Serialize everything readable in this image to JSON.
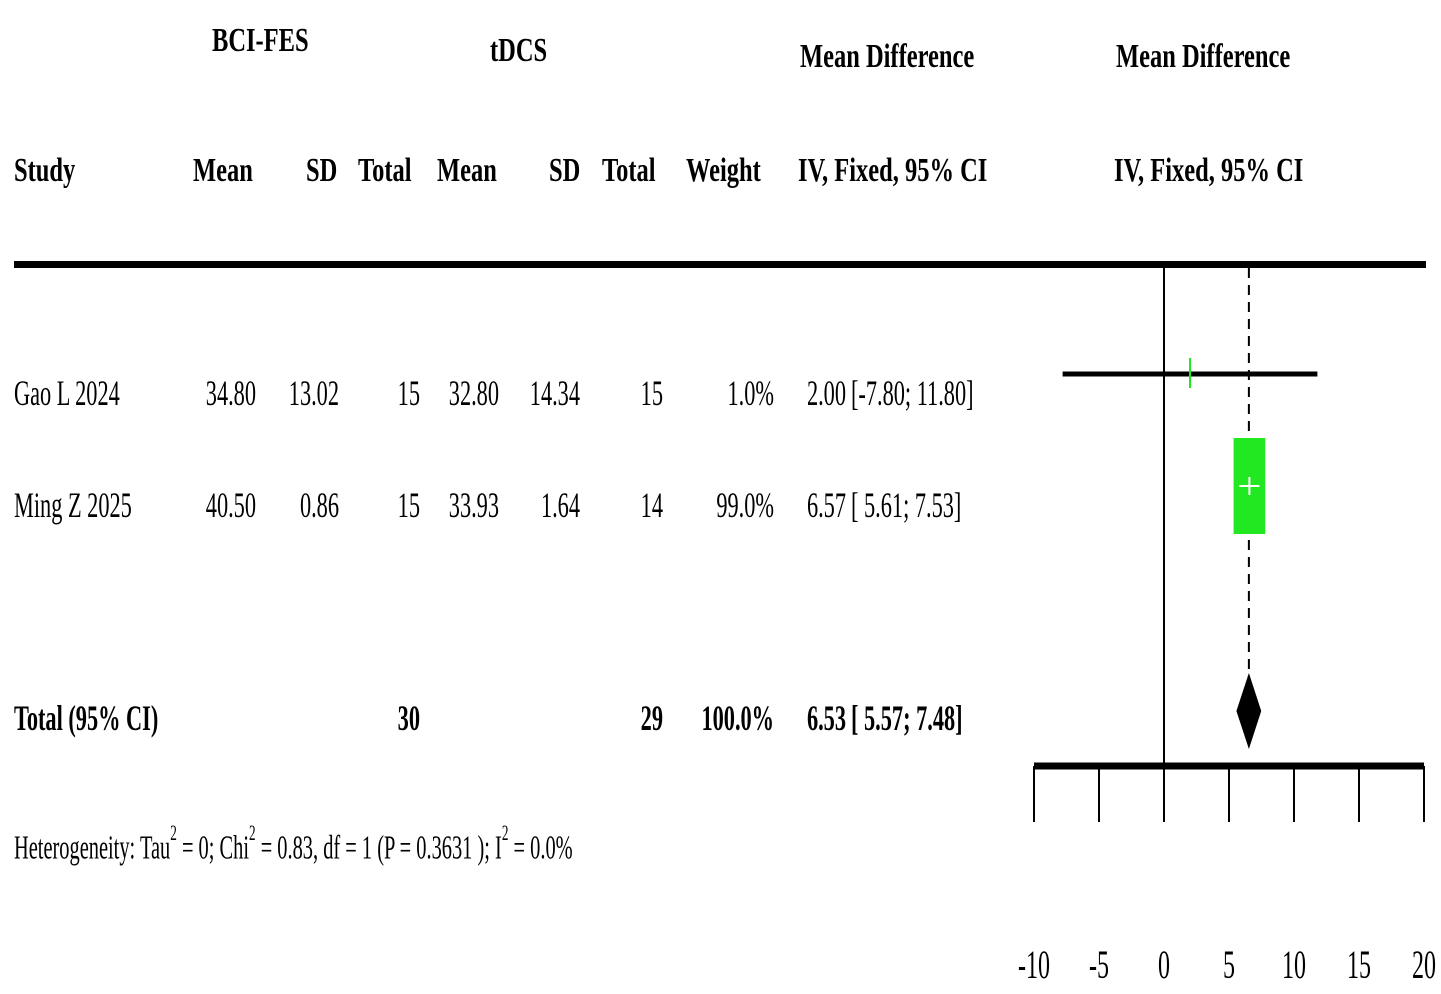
{
  "headers": {
    "group1": "BCI-FES",
    "group2": "tDCS",
    "md_col": "Mean Difference",
    "md_plot": "Mean Difference",
    "study": "Study",
    "mean1": "Mean",
    "sd1": "SD",
    "total1": "Total",
    "mean2": "Mean",
    "sd2": "SD",
    "total2": "Total",
    "weight": "Weight",
    "md_col_method": "IV, Fixed, 95% CI",
    "md_plot_method": "IV, Fixed, 95% CI"
  },
  "studies": [
    {
      "study": "Gao L 2024",
      "mean1": "34.80",
      "sd1": "13.02",
      "total1": "15",
      "mean2": "32.80",
      "sd2": "14.34",
      "total2": "15",
      "weight": "1.0%",
      "md": "2.00",
      "ci": "[-7.80; 11.80]"
    },
    {
      "study": "Ming Z 2025",
      "mean1": "40.50",
      "sd1": "0.86",
      "total1": "15",
      "mean2": "33.93",
      "sd2": "1.64",
      "total2": "14",
      "weight": "99.0%",
      "md": "6.57",
      "ci": "[ 5.61;  7.53]"
    }
  ],
  "total": {
    "label": "Total (95% CI)",
    "total1": "30",
    "total2": "29",
    "weight": "100.0%",
    "md": "6.53",
    "ci": "[ 5.57;  7.48]"
  },
  "heterogeneity": {
    "prefix": "Heterogeneity:  Tau",
    "tau_sup": "2",
    "tau_val": " = 0; Chi",
    "chi_sup": "2",
    "chi_val": " = 0.83, df = 1  (P = 0.3631 ); I",
    "i_sup": "2",
    "i_val": " = 0.0%"
  },
  "colors": {
    "square": "#22e822",
    "diamond": "#000000",
    "lines": "#000000"
  },
  "chart_data": {
    "type": "forest",
    "title": "",
    "xlabel": "",
    "xlim": [
      -10,
      20
    ],
    "xticks": [
      -10,
      -5,
      0,
      5,
      10,
      15,
      20
    ],
    "null_line": 0,
    "studies": [
      {
        "name": "Gao L 2024",
        "estimate": 2.0,
        "lower": -7.8,
        "upper": 11.8,
        "weight": 1.0
      },
      {
        "name": "Ming Z 2025",
        "estimate": 6.57,
        "lower": 5.61,
        "upper": 7.53,
        "weight": 99.0
      }
    ],
    "pooled": {
      "name": "Total (95% CI)",
      "estimate": 6.53,
      "lower": 5.57,
      "upper": 7.48
    }
  }
}
